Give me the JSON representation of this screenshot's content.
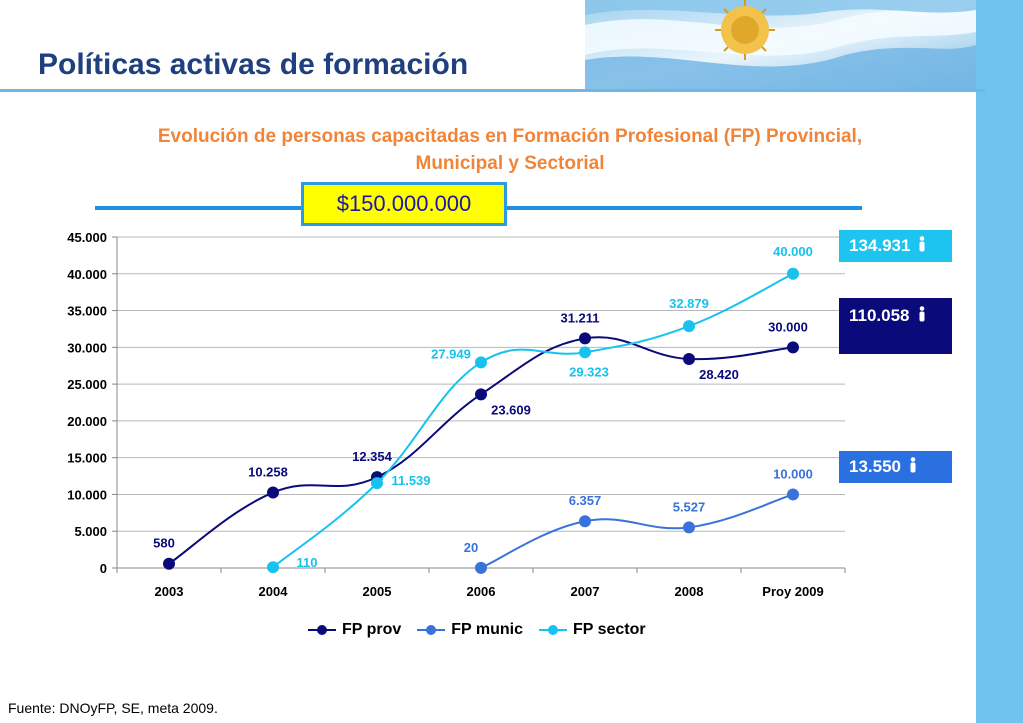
{
  "header": {
    "title": "Políticas activas de formación"
  },
  "budget": "$150.000.000",
  "totals": {
    "sector": "134.931",
    "prov": "110.058",
    "munic": "13.550"
  },
  "source": "Fuente: DNOyFP, SE, meta 2009.",
  "colors": {
    "prov": "#0a0a7a",
    "munic": "#3a72dc",
    "sector": "#17c3ee",
    "accent_orange": "#f0853a",
    "budget_box": "#ffff00"
  },
  "chart_data": {
    "type": "line",
    "title": "Evolución de personas capacitadas en Formación Profesional (FP) Provincial, Municipal y Sectorial",
    "categories": [
      "2003",
      "2004",
      "2005",
      "2006",
      "2007",
      "2008",
      "Proy 2009"
    ],
    "ylim": [
      0,
      45000
    ],
    "yticks": [
      "0",
      "5.000",
      "10.000",
      "15.000",
      "20.000",
      "25.000",
      "30.000",
      "35.000",
      "40.000",
      "45.000"
    ],
    "grid": true,
    "legend_position": "bottom",
    "series": [
      {
        "name": "FP prov",
        "color": "#0a0a7a",
        "values": [
          580,
          10258,
          12354,
          23609,
          31211,
          28420,
          30000
        ],
        "labels": [
          "580",
          "10.258",
          "12.354",
          "23.609",
          "31.211",
          "28.420",
          "30.000"
        ]
      },
      {
        "name": "FP munic",
        "color": "#3a72dc",
        "values": [
          null,
          null,
          null,
          20,
          6357,
          5527,
          10000
        ],
        "labels": [
          null,
          null,
          null,
          "20",
          "6.357",
          "5.527",
          "10.000"
        ]
      },
      {
        "name": "FP sector",
        "color": "#17c3ee",
        "values": [
          null,
          110,
          11539,
          27949,
          29323,
          32879,
          40000
        ],
        "labels": [
          null,
          "110",
          "11.539",
          "27.949",
          "29.323",
          "32.879",
          "40.000"
        ]
      }
    ]
  }
}
